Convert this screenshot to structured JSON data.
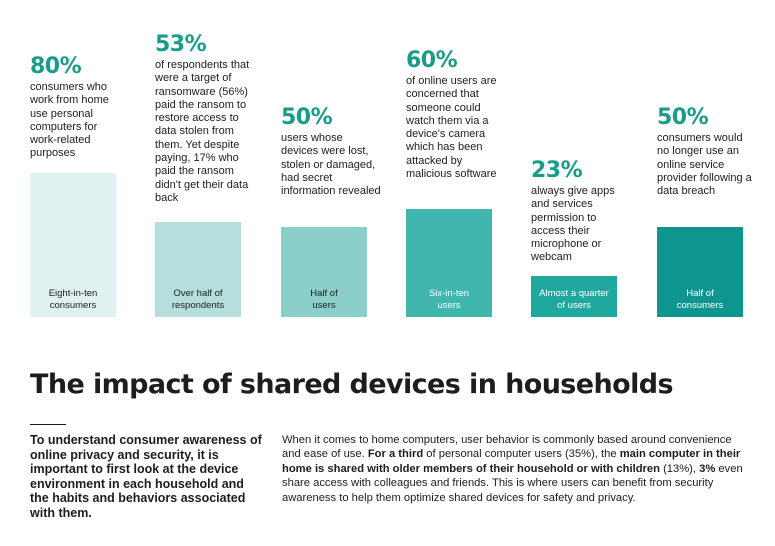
{
  "stats": [
    {
      "value": "80%",
      "description": "consumers who work from home use personal computers for work-related purposes",
      "bar_label": "Eight-in-ten consumers",
      "bar_percent": 80,
      "bar_color": "#e0f1f1"
    },
    {
      "value": "53%",
      "description": "of respondents that were a target of ransomware (56%) paid the ransom to restore access to data stolen from them. Yet despite paying, 17% who paid the ransom didn't get their data back",
      "bar_label": "Over half of respondents",
      "bar_percent": 53,
      "bar_color": "#b5dedc"
    },
    {
      "value": "50%",
      "description": "users whose devices were lost, stolen or damaged, had secret information revealed",
      "bar_label": "Half of users",
      "bar_percent": 50,
      "bar_color": "#8ccfca"
    },
    {
      "value": "60%",
      "description": "of online users are concerned that someone could watch them via a device's camera which has been attacked by malicious software",
      "bar_label": "Six-in-ten users",
      "bar_percent": 60,
      "bar_color": "#3fb6ae"
    },
    {
      "value": "23%",
      "description": "always give apps and services permission to access their microphone or webcam",
      "bar_label": "Almost a quarter of users",
      "bar_percent": 23,
      "bar_color": "#1fa89d"
    },
    {
      "value": "50%",
      "description": "consumers would no longer use an online service provider following a data breach",
      "bar_label": "Half of consumers",
      "bar_percent": 50,
      "bar_color": "#0d9690"
    }
  ],
  "heading": "The impact of shared devices in households",
  "lead_text": "To understand consumer awareness of online privacy and security, it is important to first look at the device environment in each household and the habits and behaviors associated with them.",
  "body": {
    "p1": "When it comes to home computers, user behavior is commonly based around convenience and ease of use.",
    "p2_bold_a": "For a third",
    "p3": "of personal computer users",
    "p4": "(35%), the",
    "p5_bold": "main computer in their home is shared with older members of their household or with children",
    "p6": "(13%),",
    "p7_bold": "3%",
    "p8": "even share access with colleagues and friends.",
    "p9": "This is where users can benefit from security awareness to help them optimize shared devices for safety and privacy."
  }
}
